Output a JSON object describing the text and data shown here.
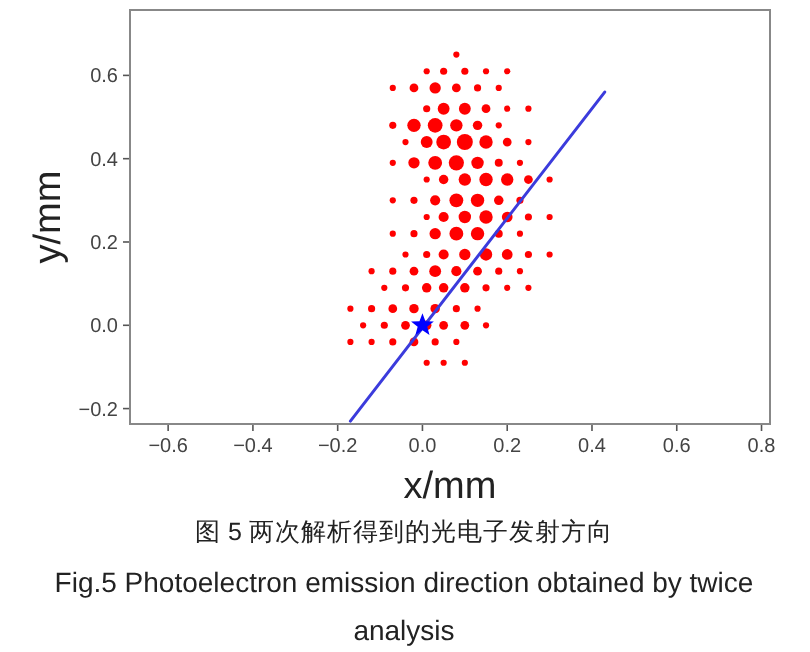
{
  "chart_data": {
    "type": "bubble",
    "xlabel": "x/mm",
    "ylabel": "y/mm",
    "xlim": [
      -0.69,
      0.82
    ],
    "ylim": [
      -0.237,
      0.757
    ],
    "xticks": [
      {
        "value": -0.6,
        "label": "−0.6"
      },
      {
        "value": -0.4,
        "label": "−0.4"
      },
      {
        "value": -0.2,
        "label": "−0.2"
      },
      {
        "value": 0,
        "label": "0.0"
      },
      {
        "value": 0.2,
        "label": "0.2"
      },
      {
        "value": 0.4,
        "label": "0.4"
      },
      {
        "value": 0.6,
        "label": "0.6"
      },
      {
        "value": 0.8,
        "label": "0.8"
      }
    ],
    "yticks": [
      {
        "value": -0.2,
        "label": "−0.2"
      },
      {
        "value": 0,
        "label": "0.0"
      },
      {
        "value": 0.2,
        "label": "0.2"
      },
      {
        "value": 0.4,
        "label": "0.4"
      },
      {
        "value": 0.6,
        "label": "0.6"
      }
    ],
    "series": [
      {
        "type": "bubble",
        "color": "#ff0000",
        "x": [
          0.08
        ],
        "values": [
          0.65
        ],
        "sizes": [
          0.15
        ]
      },
      {
        "type": "bubble",
        "color": "#ff0000",
        "x": [
          0.01,
          0.05,
          0.1,
          0.15,
          0.2
        ],
        "values": [
          0.61,
          0.61,
          0.61,
          0.61,
          0.61
        ],
        "sizes": [
          0.15,
          0.2,
          0.2,
          0.15,
          0.15
        ]
      },
      {
        "type": "bubble",
        "color": "#ff0000",
        "x": [
          -0.07,
          -0.02,
          0.03,
          0.08,
          0.13,
          0.18
        ],
        "values": [
          0.57,
          0.57,
          0.57,
          0.57,
          0.57,
          0.57
        ],
        "sizes": [
          0.15,
          0.3,
          0.5,
          0.3,
          0.2,
          0.15
        ]
      },
      {
        "type": "bubble",
        "color": "#ff0000",
        "x": [
          0.01,
          0.05,
          0.1,
          0.15,
          0.2,
          0.25
        ],
        "values": [
          0.52,
          0.52,
          0.52,
          0.52,
          0.52,
          0.52
        ],
        "sizes": [
          0.2,
          0.55,
          0.55,
          0.3,
          0.15,
          0.15
        ]
      },
      {
        "type": "bubble",
        "color": "#ff0000",
        "x": [
          -0.07,
          -0.02,
          0.03,
          0.08,
          0.13,
          0.18
        ],
        "values": [
          0.48,
          0.48,
          0.48,
          0.48,
          0.48,
          0.48
        ],
        "sizes": [
          0.2,
          0.7,
          0.85,
          0.6,
          0.35,
          0.15
        ]
      },
      {
        "type": "bubble",
        "color": "#ff0000",
        "x": [
          -0.04,
          0.01,
          0.05,
          0.1,
          0.15,
          0.2,
          0.25
        ],
        "values": [
          0.44,
          0.44,
          0.44,
          0.44,
          0.44,
          0.44,
          0.44
        ],
        "sizes": [
          0.15,
          0.55,
          0.85,
          1,
          0.7,
          0.3,
          0.15
        ]
      },
      {
        "type": "bubble",
        "color": "#ff0000",
        "x": [
          -0.07,
          -0.02,
          0.03,
          0.08,
          0.13,
          0.18,
          0.23
        ],
        "values": [
          0.39,
          0.39,
          0.39,
          0.39,
          0.39,
          0.39,
          0.39
        ],
        "sizes": [
          0.15,
          0.5,
          0.75,
          0.9,
          0.6,
          0.25,
          0.15
        ]
      },
      {
        "type": "bubble",
        "color": "#ff0000",
        "x": [
          0.01,
          0.05,
          0.1,
          0.15,
          0.2,
          0.25,
          0.3
        ],
        "values": [
          0.35,
          0.35,
          0.35,
          0.35,
          0.35,
          0.35,
          0.35
        ],
        "sizes": [
          0.15,
          0.35,
          0.6,
          0.7,
          0.6,
          0.3,
          0.15
        ]
      },
      {
        "type": "bubble",
        "color": "#ff0000",
        "x": [
          -0.07,
          -0.02,
          0.03,
          0.08,
          0.13,
          0.18,
          0.23
        ],
        "values": [
          0.3,
          0.3,
          0.3,
          0.3,
          0.3,
          0.3,
          0.3
        ],
        "sizes": [
          0.15,
          0.2,
          0.4,
          0.75,
          0.7,
          0.35,
          0.2
        ]
      },
      {
        "type": "bubble",
        "color": "#ff0000",
        "x": [
          0.01,
          0.05,
          0.1,
          0.15,
          0.2,
          0.25,
          0.3
        ],
        "values": [
          0.26,
          0.26,
          0.26,
          0.26,
          0.26,
          0.26,
          0.26
        ],
        "sizes": [
          0.15,
          0.4,
          0.6,
          0.7,
          0.45,
          0.2,
          0.15
        ]
      },
      {
        "type": "bubble",
        "color": "#ff0000",
        "x": [
          -0.07,
          -0.02,
          0.03,
          0.08,
          0.13,
          0.18,
          0.23
        ],
        "values": [
          0.22,
          0.22,
          0.22,
          0.22,
          0.22,
          0.22,
          0.22
        ],
        "sizes": [
          0.15,
          0.2,
          0.5,
          0.75,
          0.7,
          0.25,
          0.15
        ]
      },
      {
        "type": "bubble",
        "color": "#ff0000",
        "x": [
          -0.04,
          0.01,
          0.05,
          0.1,
          0.15,
          0.2,
          0.25,
          0.3
        ],
        "values": [
          0.17,
          0.17,
          0.17,
          0.17,
          0.17,
          0.17,
          0.17,
          0.17
        ],
        "sizes": [
          0.15,
          0.2,
          0.4,
          0.5,
          0.6,
          0.45,
          0.2,
          0.15
        ]
      },
      {
        "type": "bubble",
        "color": "#ff0000",
        "x": [
          -0.12,
          -0.07,
          -0.02,
          0.03,
          0.08,
          0.13,
          0.18,
          0.23
        ],
        "values": [
          0.13,
          0.13,
          0.13,
          0.13,
          0.13,
          0.13,
          0.13,
          0.13
        ],
        "sizes": [
          0.15,
          0.2,
          0.3,
          0.55,
          0.4,
          0.3,
          0.2,
          0.15
        ]
      },
      {
        "type": "bubble",
        "color": "#ff0000",
        "x": [
          -0.09,
          -0.04,
          0.01,
          0.05,
          0.1,
          0.15,
          0.2,
          0.25
        ],
        "values": [
          0.09,
          0.09,
          0.09,
          0.09,
          0.09,
          0.09,
          0.09,
          0.09
        ],
        "sizes": [
          0.15,
          0.2,
          0.35,
          0.35,
          0.35,
          0.2,
          0.15,
          0.15
        ]
      },
      {
        "type": "bubble",
        "color": "#ff0000",
        "x": [
          -0.17,
          -0.12,
          -0.07,
          -0.02,
          0.03,
          0.08,
          0.13
        ],
        "values": [
          0.04,
          0.04,
          0.04,
          0.04,
          0.04,
          0.04,
          0.04
        ],
        "sizes": [
          0.15,
          0.2,
          0.3,
          0.35,
          0.35,
          0.2,
          0.15
        ]
      },
      {
        "type": "bubble",
        "color": "#ff0000",
        "x": [
          -0.14,
          -0.09,
          -0.04,
          0.01,
          0.05,
          0.1,
          0.15
        ],
        "values": [
          0,
          0,
          0,
          0,
          0,
          0,
          0
        ],
        "sizes": [
          0.15,
          0.2,
          0.3,
          0.35,
          0.3,
          0.3,
          0.15
        ]
      },
      {
        "type": "bubble",
        "color": "#ff0000",
        "x": [
          -0.17,
          -0.12,
          -0.07,
          -0.02,
          0.03,
          0.08
        ],
        "values": [
          -0.04,
          -0.04,
          -0.04,
          -0.04,
          -0.04,
          -0.04
        ],
        "sizes": [
          0.15,
          0.15,
          0.2,
          0.3,
          0.2,
          0.15
        ]
      },
      {
        "type": "bubble",
        "color": "#ff0000",
        "x": [
          0.01,
          0.05,
          0.1
        ],
        "values": [
          -0.09,
          -0.09,
          -0.09
        ],
        "sizes": [
          0.15,
          0.15,
          0.15
        ]
      },
      {
        "type": "line",
        "color": "#3b3bdc",
        "x": [
          -0.17,
          0.43
        ],
        "values": [
          -0.23,
          0.56
        ]
      },
      {
        "type": "scatter",
        "color": "#0000ff",
        "marker": "star",
        "x": [
          0
        ],
        "values": [
          0
        ]
      }
    ],
    "annotations": [
      "图 5 两次解析得到的光电子发射方向",
      "Fig.5 Photoelectron emission direction obtained by twice analysis"
    ]
  }
}
